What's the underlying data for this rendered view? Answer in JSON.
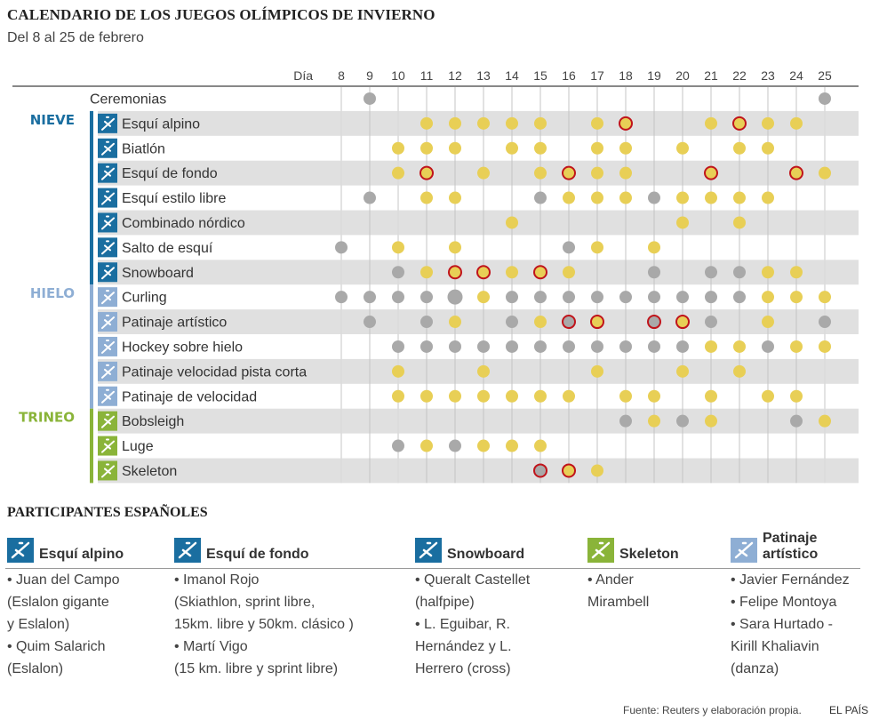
{
  "header": {
    "title": "CALENDARIO DE LOS JUEGOS OLÍMPICOS DE INVIERNO",
    "subtitle": "Del 8 al 25 de febrero"
  },
  "colors": {
    "nieve": "#1a6ea0",
    "hielo": "#8eaed4",
    "trineo": "#8ab439",
    "competition": "#e8cf56",
    "other": "#a9a9a9",
    "spanish_ring": "#c0141b",
    "band": "#e0e0e0"
  },
  "chart_data": {
    "type": "table",
    "title": "CALENDARIO DE LOS JUEGOS OLÍMPICOS DE INVIERNO",
    "subtitle": "Del 8 al 25 de febrero",
    "day_label": "Día",
    "days": [
      8,
      9,
      10,
      11,
      12,
      13,
      14,
      15,
      16,
      17,
      18,
      19,
      20,
      21,
      22,
      23,
      24,
      25
    ],
    "legend_note": "yellow = competition/medal event, gray = other session, red ring = Spanish participation",
    "groups": [
      {
        "name": "",
        "color": "",
        "rows": [
          0
        ]
      },
      {
        "name": "NIEVE",
        "color": "#1a6ea0",
        "rows": [
          1,
          2,
          3,
          4,
          5,
          6,
          7
        ]
      },
      {
        "name": "HIELO",
        "color": "#8eaed4",
        "rows": [
          8,
          9,
          10,
          11,
          12
        ]
      },
      {
        "name": "TRINEO",
        "color": "#8ab439",
        "rows": [
          13,
          14,
          15
        ]
      }
    ],
    "rows": [
      {
        "sport": "Ceremonias",
        "icon": "",
        "gray": [
          9,
          25
        ],
        "yellow": [],
        "red": []
      },
      {
        "sport": "Esquí alpino",
        "icon": "alpine-skiing-icon",
        "gray": [],
        "yellow": [
          11,
          12,
          13,
          14,
          15,
          17,
          18,
          21,
          22,
          23,
          24
        ],
        "red": [
          18,
          22
        ]
      },
      {
        "sport": "Biatlón",
        "icon": "biathlon-icon",
        "gray": [],
        "yellow": [
          10,
          11,
          12,
          14,
          15,
          17,
          18,
          20,
          22,
          23
        ],
        "red": []
      },
      {
        "sport": "Esquí de fondo",
        "icon": "cross-country-icon",
        "gray": [],
        "yellow": [
          10,
          11,
          13,
          15,
          16,
          17,
          18,
          21,
          24,
          25
        ],
        "red": [
          11,
          16,
          21,
          24
        ]
      },
      {
        "sport": "Esquí estilo libre",
        "icon": "freestyle-icon",
        "gray": [
          9,
          15,
          19
        ],
        "yellow": [
          11,
          12,
          16,
          17,
          18,
          20,
          21,
          22,
          23
        ],
        "red": []
      },
      {
        "sport": "Combinado nórdico",
        "icon": "nordic-combined-icon",
        "gray": [],
        "yellow": [
          14,
          20,
          22
        ],
        "red": []
      },
      {
        "sport": "Salto de esquí",
        "icon": "ski-jumping-icon",
        "gray": [
          8,
          16
        ],
        "yellow": [
          10,
          12,
          17,
          19
        ],
        "red": []
      },
      {
        "sport": "Snowboard",
        "icon": "snowboard-icon",
        "gray": [
          10,
          19,
          21,
          22
        ],
        "yellow": [
          11,
          12,
          13,
          14,
          15,
          16,
          23,
          24
        ],
        "red": [
          12,
          13,
          15
        ]
      },
      {
        "sport": "Curling",
        "icon": "curling-icon",
        "gray": [
          8,
          9,
          10,
          11,
          12,
          14,
          15,
          16,
          17,
          18,
          19,
          20,
          21,
          22
        ],
        "yellow": [
          13,
          23,
          24,
          25
        ],
        "red": []
      },
      {
        "sport": "Patinaje artístico",
        "icon": "figure-skating-icon",
        "gray": [
          9,
          11,
          14,
          16,
          19,
          21,
          25
        ],
        "yellow": [
          12,
          15,
          17,
          20,
          23
        ],
        "red": [
          16,
          17,
          19,
          20
        ]
      },
      {
        "sport": "Hockey sobre hielo",
        "icon": "ice-hockey-icon",
        "gray": [
          10,
          11,
          12,
          13,
          14,
          15,
          16,
          17,
          18,
          19,
          20,
          23
        ],
        "yellow": [
          21,
          22,
          24,
          25
        ],
        "red": []
      },
      {
        "sport": "Patinaje velocidad pista corta",
        "icon": "short-track-icon",
        "gray": [],
        "yellow": [
          10,
          13,
          17,
          20,
          22
        ],
        "red": []
      },
      {
        "sport": "Patinaje de velocidad",
        "icon": "speed-skating-icon",
        "gray": [],
        "yellow": [
          10,
          11,
          12,
          13,
          14,
          15,
          16,
          18,
          19,
          21,
          23,
          24
        ],
        "red": []
      },
      {
        "sport": "Bobsleigh",
        "icon": "bobsleigh-icon",
        "gray": [
          18,
          20,
          24
        ],
        "yellow": [
          19,
          21,
          25
        ],
        "red": []
      },
      {
        "sport": "Luge",
        "icon": "luge-icon",
        "gray": [
          10,
          12
        ],
        "yellow": [
          11,
          13,
          14,
          15
        ],
        "red": []
      },
      {
        "sport": "Skeleton",
        "icon": "skeleton-icon",
        "gray": [
          15
        ],
        "yellow": [
          16,
          17
        ],
        "red": [
          15,
          16
        ]
      }
    ]
  },
  "participants": {
    "title": "PARTICIPANTES ESPAÑOLES",
    "columns": [
      {
        "sport": "Esquí alpino",
        "icon": "alpine-skiing-icon",
        "color": "#1a6ea0",
        "text": "• Juan del Campo\n(Eslalon gigante\ny Eslalon)\n• Quim Salarich\n(Eslalon)"
      },
      {
        "sport": "Esquí de fondo",
        "icon": "cross-country-icon",
        "color": "#1a6ea0",
        "text": "• Imanol Rojo\n(Skiathlon, sprint libre,\n15km. libre y 50km. clásico )\n• Martí Vigo\n(15 km. libre y sprint libre)"
      },
      {
        "sport": "Snowboard",
        "icon": "snowboard-icon",
        "color": "#1a6ea0",
        "text": "• Queralt Castellet\n(halfpipe)\n• L. Eguibar, R.\nHernández y L.\nHerrero (cross)"
      },
      {
        "sport": "Skeleton",
        "icon": "skeleton-icon",
        "color": "#8ab439",
        "text": "• Ander\nMirambell"
      },
      {
        "sport": "Patinaje\nartístico",
        "icon": "figure-skating-icon",
        "color": "#8eaed4",
        "text": "• Javier Fernández\n• Felipe Montoya\n• Sara Hurtado -\nKirill Khaliavin\n(danza)"
      }
    ]
  },
  "footer": {
    "source": "Fuente: Reuters y elaboración propia.",
    "brand": "EL PAÍS"
  }
}
